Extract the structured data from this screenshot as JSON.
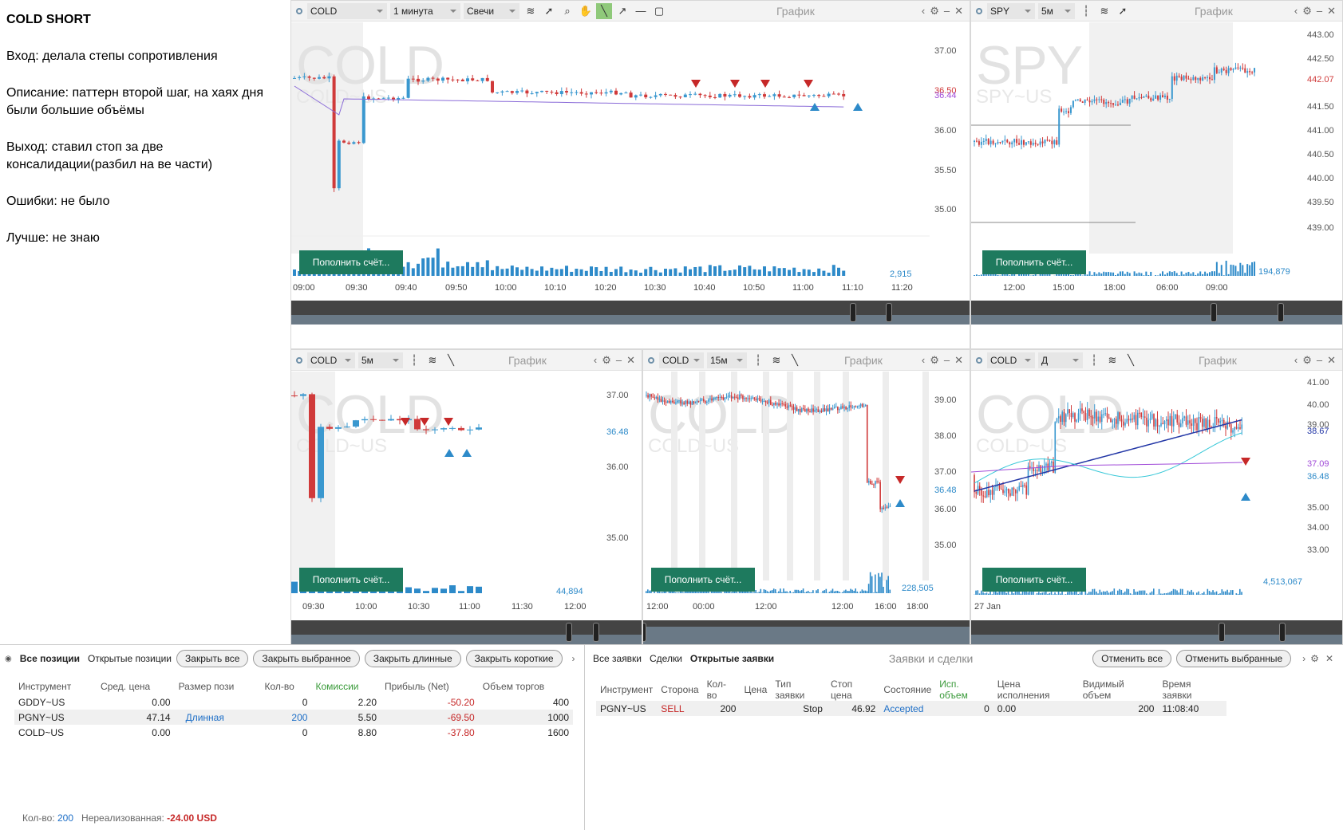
{
  "notes": {
    "title": "COLD SHORT",
    "lines": [
      "Вход: делала степы сопротивления",
      "Описание: паттерн второй шаг, на хаях дня были большие объёмы",
      "Выход: ставил стоп за две консалидации(разбил на ве части)",
      "Ошибки: не было",
      "Лучше: не знаю"
    ]
  },
  "chart1": {
    "symbol": "COLD",
    "interval": "1 минута",
    "type": "Свечи",
    "title": "График",
    "watermark": "COLD",
    "watermark2": "COLD~US",
    "y_ticks": [
      "37.00",
      "36.50",
      "36.00",
      "35.50",
      "35.00"
    ],
    "price_labels": [
      "36.50",
      "36.44"
    ],
    "x_ticks": [
      "09:00",
      "09:30",
      "09:40",
      "09:50",
      "10:00",
      "10:10",
      "10:20",
      "10:30",
      "10:40",
      "10:50",
      "11:00",
      "11:10",
      "11:20"
    ],
    "volume": "2,915",
    "fund": "Пополнить счёт..."
  },
  "chart2": {
    "symbol": "SPY",
    "interval": "5м",
    "title": "График",
    "watermark": "SPY",
    "watermark2": "SPY~US",
    "y_ticks": [
      "443.00",
      "442.50",
      "442.07",
      "441.50",
      "441.00",
      "440.50",
      "440.00",
      "439.50",
      "439.00"
    ],
    "x_ticks": [
      "12:00",
      "15:00",
      "18:00",
      "06:00",
      "09:00"
    ],
    "volume": "194,879",
    "fund": "Пополнить счёт..."
  },
  "chart3": {
    "symbol": "COLD",
    "interval": "5м",
    "title": "График",
    "watermark": "COLD",
    "watermark2": "COLD~US",
    "y_ticks": [
      "37.00",
      "36.48",
      "36.00",
      "35.00"
    ],
    "x_ticks": [
      "09:30",
      "10:00",
      "10:30",
      "11:00",
      "11:30",
      "12:00"
    ],
    "volume": "44,894",
    "fund": "Пополнить счёт..."
  },
  "chart4": {
    "symbol": "COLD",
    "interval": "15м",
    "title": "График",
    "watermark": "COLD",
    "watermark2": "COLD~US",
    "y_ticks": [
      "39.00",
      "38.00",
      "37.00",
      "36.48",
      "36.00",
      "35.00"
    ],
    "x_ticks": [
      "12:00",
      "00:00",
      "12:00",
      "12:00",
      "16:00",
      "18:00"
    ],
    "volume": "228,505",
    "fund": "Пополнить счёт..."
  },
  "chart5": {
    "symbol": "COLD",
    "interval": "Д",
    "title": "График",
    "watermark": "COLD",
    "watermark2": "COLD~US",
    "y_ticks": [
      "41.00",
      "40.00",
      "39.00",
      "38.67",
      "37.09",
      "36.48",
      "35.00",
      "34.00",
      "33.00"
    ],
    "x_ticks": [
      "27 Jan"
    ],
    "volume": "4,513,067",
    "fund": "Пополнить счёт..."
  },
  "positions": {
    "tabs": [
      "Все позиции",
      "Открытые позиции"
    ],
    "buttons": [
      "Закрыть все",
      "Закрыть выбранное",
      "Закрыть длинные",
      "Закрыть короткие"
    ],
    "headers": [
      "Инструмент",
      "Сред. цена",
      "Размер пози",
      "Кол-во",
      "Комиссии",
      "Прибыль (Net)",
      "Объем торгов"
    ],
    "rows": [
      [
        "GDDY~US",
        "0.00",
        "",
        "0",
        "2.20",
        "-50.20",
        "400"
      ],
      [
        "PGNY~US",
        "47.14",
        "Длинная",
        "200",
        "5.50",
        "-69.50",
        "1000"
      ],
      [
        "COLD~US",
        "0.00",
        "",
        "0",
        "8.80",
        "-37.80",
        "1600"
      ]
    ],
    "footer": {
      "qty_label": "Кол-во:",
      "qty": "200",
      "unreal_label": "Нереализованная:",
      "unreal": "-24.00 USD"
    }
  },
  "orders": {
    "tabs": [
      "Все заявки",
      "Сделки",
      "Открытые заявки"
    ],
    "title": "Заявки и сделки",
    "buttons": [
      "Отменить все",
      "Отменить выбранные"
    ],
    "headers": [
      "Инструмент",
      "Сторона",
      "Кол-во",
      "Цена",
      "Тип заявки",
      "Стоп цена",
      "Состояние",
      "Исп. объем",
      "Цена исполнения",
      "Видимый объем",
      "Время заявки"
    ],
    "rows": [
      [
        "PGNY~US",
        "SELL",
        "200",
        "",
        "Stop",
        "46.92",
        "Accepted",
        "0",
        "0.00",
        "200",
        "11:08:40"
      ]
    ]
  },
  "colors": {
    "up": "#3a98cf",
    "down": "#d03a3a",
    "fund": "#1e7a5e",
    "accent": "#3a9a3a"
  }
}
